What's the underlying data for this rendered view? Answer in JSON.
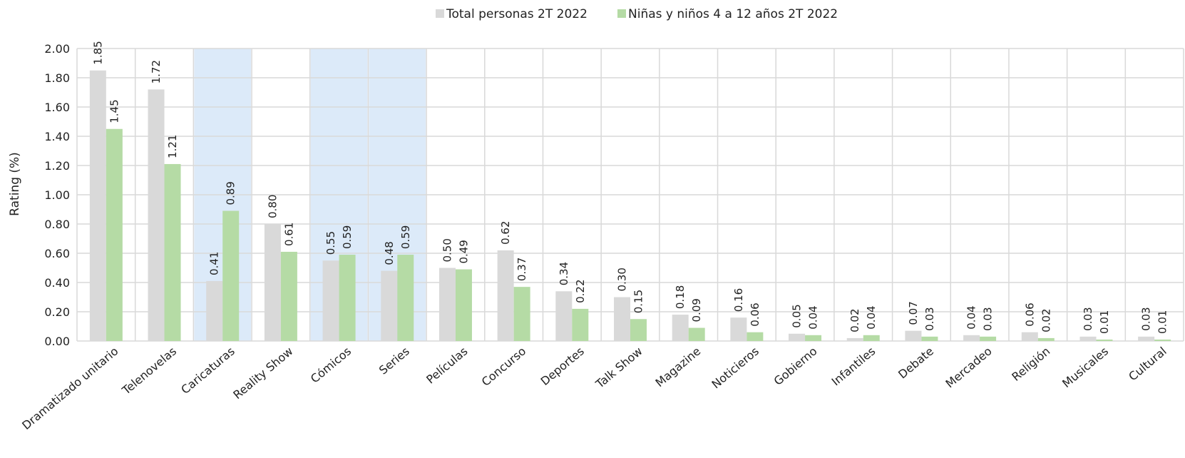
{
  "chart_data": {
    "type": "bar",
    "ylabel": "Rating (%)",
    "ylim": [
      0,
      2.0
    ],
    "ytick_step": 0.2,
    "ytick_labels": [
      "0.00",
      "0.20",
      "0.40",
      "0.60",
      "0.80",
      "1.00",
      "1.20",
      "1.40",
      "1.60",
      "1.80",
      "2.00"
    ],
    "grid": true,
    "legend_position": "top-center",
    "categories": [
      "Dramatizado unitario",
      "Telenovelas",
      "Caricaturas",
      "Reality Show",
      "Cómicos",
      "Series",
      "Películas",
      "Concurso",
      "Deportes",
      "Talk Show",
      "Magazine",
      "Noticieros",
      "Gobierno",
      "Infantiles",
      "Debate",
      "Mercadeo",
      "Religión",
      "Musicales",
      "Cultural"
    ],
    "highlighted_categories": [
      "Caricaturas",
      "Cómicos",
      "Series"
    ],
    "series": [
      {
        "name": "Total personas 2T 2022",
        "color": "#d9d9d9",
        "values": [
          1.85,
          1.72,
          0.41,
          0.8,
          0.55,
          0.48,
          0.5,
          0.62,
          0.34,
          0.3,
          0.18,
          0.16,
          0.05,
          0.02,
          0.07,
          0.04,
          0.06,
          0.03,
          0.03
        ],
        "labels": [
          "1.85",
          "1.72",
          "0.41",
          "0.80",
          "0.55",
          "0.48",
          "0.50",
          "0.62",
          "0.34",
          "0.30",
          "0.18",
          "0.16",
          "0.05",
          "0.02",
          "0.07",
          "0.04",
          "0.06",
          "0.03",
          "0.03"
        ]
      },
      {
        "name": "Niñas y niños 4 a 12 años 2T 2022",
        "color": "#b5dba5",
        "values": [
          1.45,
          1.21,
          0.89,
          0.61,
          0.59,
          0.59,
          0.49,
          0.37,
          0.22,
          0.15,
          0.09,
          0.06,
          0.04,
          0.04,
          0.03,
          0.03,
          0.02,
          0.01,
          0.01
        ],
        "labels": [
          "1.45",
          "1.21",
          "0.89",
          "0.61",
          "0.59",
          "0.59",
          "0.49",
          "0.37",
          "0.22",
          "0.15",
          "0.09",
          "0.06",
          "0.04",
          "0.04",
          "0.03",
          "0.03",
          "0.02",
          "0.01",
          "0.01"
        ]
      }
    ],
    "colors": {
      "highlight_band": "#dceaf9",
      "gridline": "#d9d9d9"
    }
  }
}
